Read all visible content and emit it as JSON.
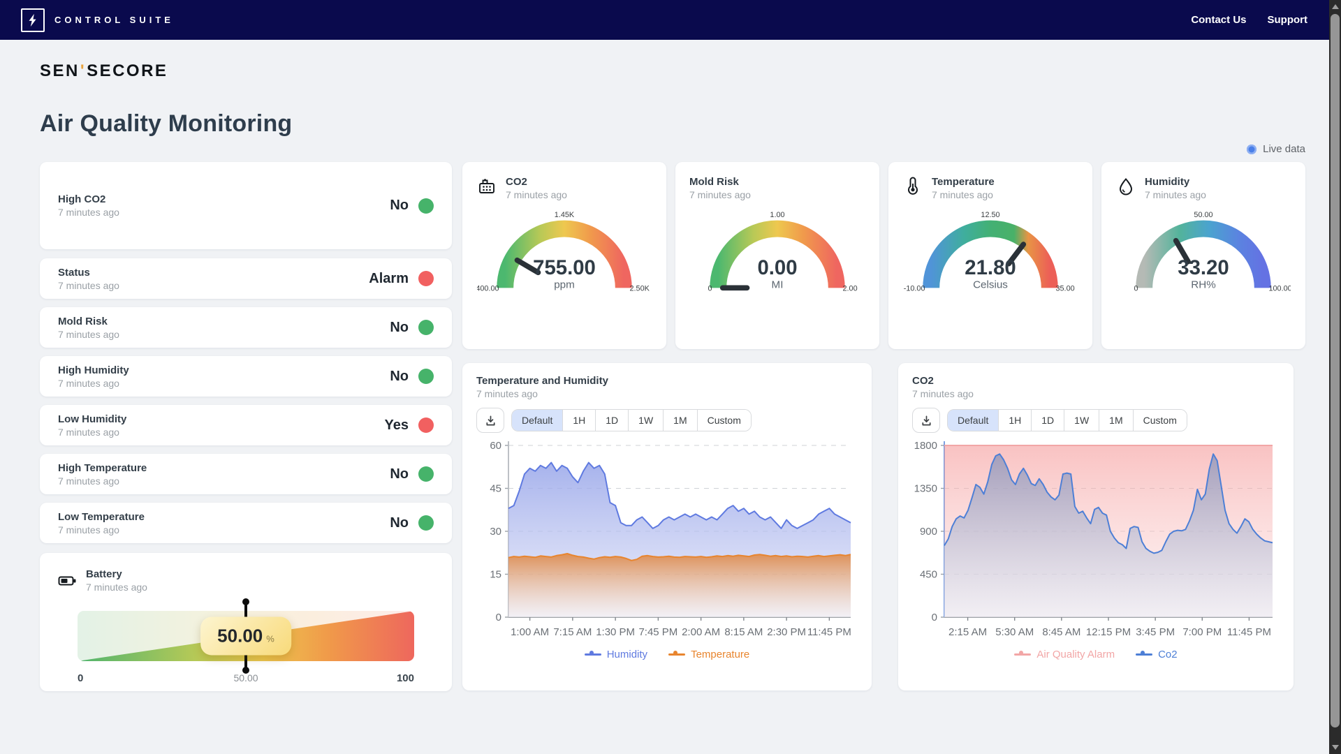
{
  "topbar": {
    "brand": "CONTROL SUITE",
    "links": [
      {
        "label": "Contact Us"
      },
      {
        "label": "Support"
      }
    ]
  },
  "logo": {
    "pre": "SEN",
    "accent": "'",
    "post": "SECORE"
  },
  "page": {
    "title": "Air Quality Monitoring",
    "live_label": "Live data"
  },
  "colors": {
    "topbar_bg": "#0a0a4d",
    "ok_green": "#46b36a",
    "alert_red": "#f16060",
    "live_blue": "#4a7fe8",
    "active_range_bg": "#d7e3fb"
  },
  "alerts": [
    {
      "title": "High CO2",
      "time": "7 minutes ago",
      "value": "No",
      "state": "ok"
    },
    {
      "title": "Status",
      "time": "7 minutes ago",
      "value": "Alarm",
      "state": "alert"
    },
    {
      "title": "Mold Risk",
      "time": "7 minutes ago",
      "value": "No",
      "state": "ok"
    },
    {
      "title": "High Humidity",
      "time": "7 minutes ago",
      "value": "No",
      "state": "ok"
    },
    {
      "title": "Low Humidity",
      "time": "7 minutes ago",
      "value": "Yes",
      "state": "alert"
    },
    {
      "title": "High Temperature",
      "time": "7 minutes ago",
      "value": "No",
      "state": "ok"
    },
    {
      "title": "Low Temperature",
      "time": "7 minutes ago",
      "value": "No",
      "state": "ok"
    }
  ],
  "battery": {
    "title": "Battery",
    "time": "7 minutes ago",
    "value": "50.00",
    "unit": "%",
    "percent": 50,
    "scale_min": "0",
    "scale_mid": "50.00",
    "scale_max": "100"
  },
  "gauges": [
    {
      "title": "CO2",
      "time": "7 minutes ago",
      "icon": "factory-icon",
      "value": "755.00",
      "unit": "ppm",
      "min_label": "400.00",
      "mid_label": "1.45K",
      "max_label": "2.50K",
      "min": 400,
      "max": 2500,
      "value_num": 755
    },
    {
      "title": "Mold Risk",
      "time": "7 minutes ago",
      "icon": "",
      "value": "0.00",
      "unit": "MI",
      "min_label": "0",
      "mid_label": "1.00",
      "max_label": "2.00",
      "min": 0,
      "max": 2,
      "value_num": 0
    },
    {
      "title": "Temperature",
      "time": "7 minutes ago",
      "icon": "thermometer-icon",
      "value": "21.80",
      "unit": "Celsius",
      "min_label": "-10.00",
      "mid_label": "12.50",
      "max_label": "35.00",
      "min": -10,
      "max": 35,
      "value_num": 21.8
    },
    {
      "title": "Humidity",
      "time": "7 minutes ago",
      "icon": "droplet-icon",
      "value": "33.20",
      "unit": "RH%",
      "min_label": "0",
      "mid_label": "50.00",
      "max_label": "100.00",
      "min": 0,
      "max": 100,
      "value_num": 33.2
    }
  ],
  "charts": [
    {
      "title": "Temperature and Humidity",
      "time": "7 minutes ago",
      "ranges": [
        "Default",
        "1H",
        "1D",
        "1W",
        "1M",
        "Custom"
      ],
      "active_range": "Default",
      "chart_data": {
        "type": "area",
        "xlabels": [
          "1:00 AM",
          "7:15 AM",
          "1:30 PM",
          "7:45 PM",
          "2:00 AM",
          "8:15 AM",
          "2:30 PM",
          "11:45 PM"
        ],
        "ylim": [
          0,
          60
        ],
        "yticks": [
          0,
          15,
          30,
          45,
          60
        ],
        "grid": "dashed",
        "axis_color": "#b6bac0",
        "legend_position": "bottom",
        "series": [
          {
            "name": "Humidity",
            "color": "#5f7ae0",
            "values": [
              38,
              39,
              44,
              50,
              52,
              51,
              53,
              52,
              54,
              51,
              53,
              52,
              49,
              47,
              51,
              54,
              52,
              53,
              50,
              40,
              39,
              33,
              32,
              32,
              34,
              35,
              33,
              31,
              32,
              34,
              35,
              34,
              35,
              36,
              35,
              36,
              35,
              34,
              35,
              34,
              36,
              38,
              39,
              37,
              38,
              36,
              37,
              35,
              34,
              35,
              33,
              31,
              34,
              32,
              31,
              32,
              33,
              34,
              36,
              37,
              38,
              36,
              35,
              34,
              33
            ]
          },
          {
            "name": "Temperature",
            "color": "#e8852e",
            "values": [
              20.8,
              21.2,
              21.0,
              21.3,
              21.1,
              20.9,
              21.4,
              21.2,
              21.0,
              21.5,
              21.8,
              22.2,
              21.6,
              21.2,
              21.0,
              20.6,
              20.3,
              20.8,
              21.1,
              20.9,
              21.2,
              21.0,
              20.5,
              19.8,
              20.2,
              21.3,
              21.5,
              21.2,
              21.0,
              21.1,
              21.3,
              21.0,
              20.9,
              21.2,
              21.1,
              21.0,
              21.2,
              20.9,
              21.1,
              21.4,
              21.2,
              21.5,
              21.3,
              21.6,
              21.4,
              21.2,
              21.7,
              21.9,
              21.6,
              21.3,
              21.5,
              21.2,
              21.4,
              21.1,
              21.3,
              21.2,
              21.0,
              21.3,
              21.5,
              21.2,
              21.4,
              21.6,
              21.8,
              21.5,
              21.9
            ]
          }
        ]
      }
    },
    {
      "title": "CO2",
      "time": "7 minutes ago",
      "ranges": [
        "Default",
        "1H",
        "1D",
        "1W",
        "1M",
        "Custom"
      ],
      "active_range": "Default",
      "chart_data": {
        "type": "area",
        "xlabels": [
          "2:15 AM",
          "5:30 AM",
          "8:45 AM",
          "12:15 PM",
          "3:45 PM",
          "7:00 PM",
          "11:45 PM"
        ],
        "ylim": [
          0,
          1800
        ],
        "yticks": [
          0,
          450,
          900,
          1350,
          1800
        ],
        "grid": "dashed",
        "axis_color": "#6e96df",
        "legend_position": "bottom",
        "series": [
          {
            "name": "Air Quality Alarm",
            "color": "#f2a6a6",
            "values": [
              1800,
              1800
            ]
          },
          {
            "name": "Co2",
            "color": "#4d7fd6",
            "values": [
              750,
              820,
              950,
              1030,
              1060,
              1040,
              1120,
              1250,
              1390,
              1360,
              1290,
              1420,
              1600,
              1690,
              1710,
              1650,
              1560,
              1440,
              1390,
              1500,
              1560,
              1490,
              1400,
              1380,
              1450,
              1390,
              1310,
              1260,
              1230,
              1280,
              1500,
              1510,
              1500,
              1160,
              1090,
              1110,
              1040,
              980,
              1130,
              1150,
              1090,
              1070,
              900,
              830,
              780,
              760,
              720,
              930,
              950,
              940,
              790,
              720,
              690,
              670,
              680,
              700,
              790,
              870,
              900,
              910,
              905,
              920,
              1010,
              1120,
              1340,
              1230,
              1290,
              1550,
              1710,
              1640,
              1380,
              1120,
              980,
              920,
              880,
              950,
              1030,
              1000,
              920,
              870,
              830,
              800,
              790,
              780
            ]
          }
        ]
      }
    }
  ]
}
